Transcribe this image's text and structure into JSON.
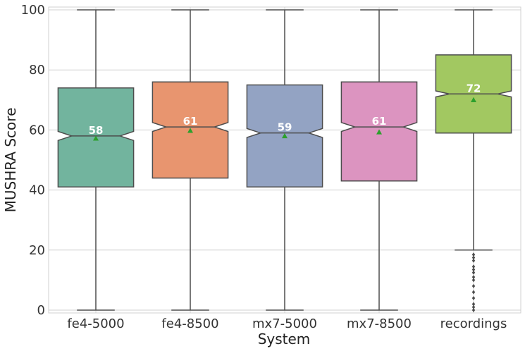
{
  "chart_data": {
    "type": "boxplot",
    "notched": true,
    "xlabel": "System",
    "ylabel": "MUSHRA Score",
    "ylim": [
      0,
      100
    ],
    "yticks": [
      0,
      20,
      40,
      60,
      80,
      100
    ],
    "grid": true,
    "categories": [
      "fe4-5000",
      "fe4-8500",
      "mx7-5000",
      "mx7-8500",
      "recordings"
    ],
    "boxes": [
      {
        "category": "fe4-5000",
        "color": "#72b49e",
        "whisker_low": 0,
        "q1": 41,
        "median": 58,
        "q3": 74,
        "whisker_high": 100,
        "notch_low": 56.5,
        "notch_high": 59.5,
        "mean": 57.2,
        "median_label": "58",
        "outliers": []
      },
      {
        "category": "fe4-8500",
        "color": "#e8956f",
        "whisker_low": 0,
        "q1": 44,
        "median": 61,
        "q3": 76,
        "whisker_high": 100,
        "notch_low": 59.5,
        "notch_high": 62.5,
        "mean": 59.8,
        "median_label": "61",
        "outliers": []
      },
      {
        "category": "mx7-5000",
        "color": "#93a3c3",
        "whisker_low": 0,
        "q1": 41,
        "median": 59,
        "q3": 75,
        "whisker_high": 100,
        "notch_low": 57.5,
        "notch_high": 60.5,
        "mean": 58.0,
        "median_label": "59",
        "outliers": []
      },
      {
        "category": "mx7-8500",
        "color": "#dc94c0",
        "whisker_low": 0,
        "q1": 43,
        "median": 61,
        "q3": 76,
        "whisker_high": 100,
        "notch_low": 59.5,
        "notch_high": 62.5,
        "mean": 59.3,
        "median_label": "61",
        "outliers": []
      },
      {
        "category": "recordings",
        "color": "#a2c861",
        "whisker_low": 20,
        "q1": 59,
        "median": 72,
        "q3": 85,
        "whisker_high": 100,
        "notch_low": 71,
        "notch_high": 73,
        "mean": 70.0,
        "median_label": "72",
        "outliers": [
          18.5,
          17.5,
          16.5,
          14.5,
          13.5,
          12.5,
          11,
          10,
          8,
          6,
          4,
          2,
          1,
          0
        ]
      }
    ],
    "colors": {
      "grid": "#d0d0d0",
      "line": "#4d4d4d",
      "mean_marker": "#2ca02c",
      "median_text": "#ffffff"
    }
  }
}
